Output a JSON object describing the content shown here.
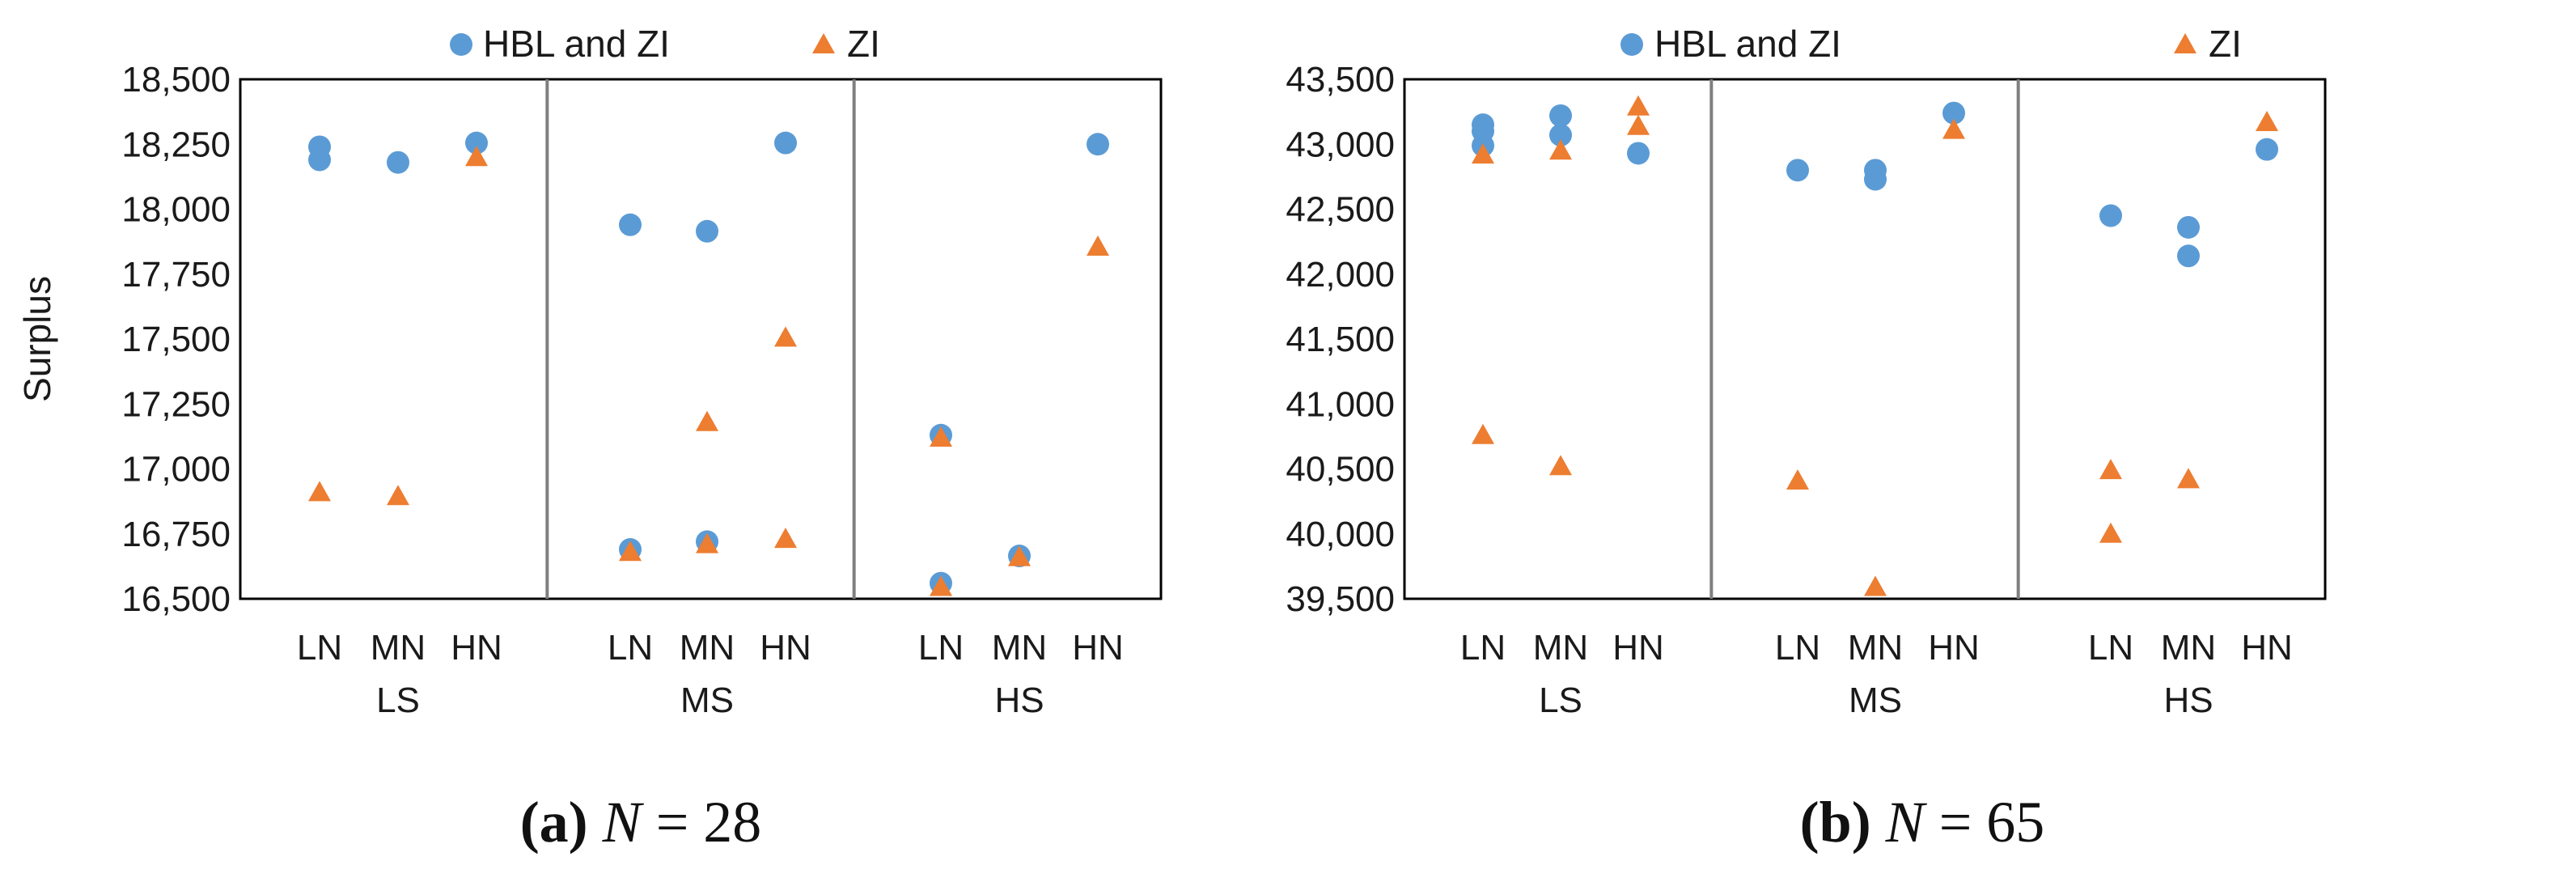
{
  "chart_data": [
    {
      "type": "scatter",
      "ylabel": "Surplus",
      "ylim": [
        16500,
        18500
      ],
      "yticks": [
        "16,500",
        "16,750",
        "17,000",
        "17,250",
        "17,500",
        "17,750",
        "18,000",
        "18,250",
        "18,500"
      ],
      "ytick_values": [
        16500,
        16750,
        17000,
        17250,
        17500,
        17750,
        18000,
        18250,
        18500
      ],
      "groups": [
        "LS",
        "MS",
        "HS"
      ],
      "subcategories": [
        "LN",
        "MN",
        "HN"
      ],
      "caption": {
        "label": "(a)",
        "var": "N",
        "eq": " = 28"
      },
      "legend_position": "top",
      "colors": {
        "HBL and ZI": "#5b9bd5",
        "ZI": "#ed7d31"
      },
      "series": [
        {
          "name": "HBL and ZI",
          "marker": "circle",
          "color": "#5b9bd5",
          "points": [
            {
              "group": "LS",
              "x": "LN",
              "y": 18240
            },
            {
              "group": "LS",
              "x": "LN",
              "y": 18190
            },
            {
              "group": "LS",
              "x": "MN",
              "y": 18180
            },
            {
              "group": "LS",
              "x": "HN",
              "y": 18255
            },
            {
              "group": "MS",
              "x": "LN",
              "y": 17940
            },
            {
              "group": "MS",
              "x": "LN",
              "y": 16690
            },
            {
              "group": "MS",
              "x": "MN",
              "y": 17915
            },
            {
              "group": "MS",
              "x": "MN",
              "y": 16720
            },
            {
              "group": "MS",
              "x": "HN",
              "y": 18255
            },
            {
              "group": "HS",
              "x": "LN",
              "y": 17130
            },
            {
              "group": "HS",
              "x": "LN",
              "y": 16560
            },
            {
              "group": "HS",
              "x": "MN",
              "y": 16665
            },
            {
              "group": "HS",
              "x": "HN",
              "y": 18250
            }
          ]
        },
        {
          "name": "ZI",
          "marker": "triangle",
          "color": "#ed7d31",
          "points": [
            {
              "group": "LS",
              "x": "LN",
              "y": 16910
            },
            {
              "group": "LS",
              "x": "MN",
              "y": 16895
            },
            {
              "group": "LS",
              "x": "HN",
              "y": 18200
            },
            {
              "group": "MS",
              "x": "LN",
              "y": 16680
            },
            {
              "group": "MS",
              "x": "MN",
              "y": 17180
            },
            {
              "group": "MS",
              "x": "MN",
              "y": 16710
            },
            {
              "group": "MS",
              "x": "HN",
              "y": 17505
            },
            {
              "group": "MS",
              "x": "HN",
              "y": 16730
            },
            {
              "group": "HS",
              "x": "LN",
              "y": 17120
            },
            {
              "group": "HS",
              "x": "LN",
              "y": 16545
            },
            {
              "group": "HS",
              "x": "MN",
              "y": 16660
            },
            {
              "group": "HS",
              "x": "HN",
              "y": 17855
            }
          ]
        }
      ]
    },
    {
      "type": "scatter",
      "ylabel": "Surplus",
      "ylim": [
        39500,
        43500
      ],
      "yticks": [
        "39,500",
        "40,000",
        "40,500",
        "41,000",
        "41,500",
        "42,000",
        "42,500",
        "43,000",
        "43,500"
      ],
      "ytick_values": [
        39500,
        40000,
        40500,
        41000,
        41500,
        42000,
        42500,
        43000,
        43500
      ],
      "groups": [
        "LS",
        "MS",
        "HS"
      ],
      "subcategories": [
        "LN",
        "MN",
        "HN"
      ],
      "caption": {
        "label": "(b)",
        "var": "N",
        "eq": " = 65"
      },
      "legend_position": "top",
      "colors": {
        "HBL and ZI": "#5b9bd5",
        "ZI": "#ed7d31"
      },
      "series": [
        {
          "name": "HBL and ZI",
          "marker": "circle",
          "color": "#5b9bd5",
          "points": [
            {
              "group": "LS",
              "x": "LN",
              "y": 43150
            },
            {
              "group": "LS",
              "x": "LN",
              "y": 43100
            },
            {
              "group": "LS",
              "x": "LN",
              "y": 42990
            },
            {
              "group": "LS",
              "x": "MN",
              "y": 43220
            },
            {
              "group": "LS",
              "x": "MN",
              "y": 43070
            },
            {
              "group": "LS",
              "x": "HN",
              "y": 42930
            },
            {
              "group": "MS",
              "x": "LN",
              "y": 42800
            },
            {
              "group": "MS",
              "x": "MN",
              "y": 42800
            },
            {
              "group": "MS",
              "x": "MN",
              "y": 42730
            },
            {
              "group": "MS",
              "x": "HN",
              "y": 43240
            },
            {
              "group": "HS",
              "x": "LN",
              "y": 42450
            },
            {
              "group": "HS",
              "x": "MN",
              "y": 42360
            },
            {
              "group": "HS",
              "x": "MN",
              "y": 42140
            },
            {
              "group": "HS",
              "x": "HN",
              "y": 42960
            }
          ]
        },
        {
          "name": "ZI",
          "marker": "triangle",
          "color": "#ed7d31",
          "points": [
            {
              "group": "LS",
              "x": "LN",
              "y": 42920
            },
            {
              "group": "LS",
              "x": "LN",
              "y": 40760
            },
            {
              "group": "LS",
              "x": "MN",
              "y": 42950
            },
            {
              "group": "LS",
              "x": "MN",
              "y": 40520
            },
            {
              "group": "LS",
              "x": "HN",
              "y": 43290
            },
            {
              "group": "LS",
              "x": "HN",
              "y": 43140
            },
            {
              "group": "MS",
              "x": "LN",
              "y": 40410
            },
            {
              "group": "MS",
              "x": "MN",
              "y": 39590
            },
            {
              "group": "MS",
              "x": "HN",
              "y": 43110
            },
            {
              "group": "HS",
              "x": "LN",
              "y": 40490
            },
            {
              "group": "HS",
              "x": "LN",
              "y": 40000
            },
            {
              "group": "HS",
              "x": "MN",
              "y": 40420
            },
            {
              "group": "HS",
              "x": "HN",
              "y": 43170
            }
          ]
        }
      ]
    }
  ]
}
